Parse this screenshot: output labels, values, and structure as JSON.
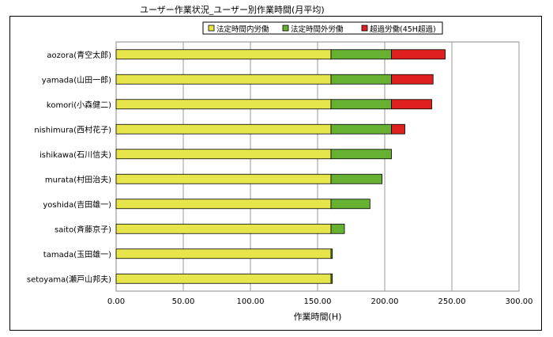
{
  "chart_data": {
    "type": "bar",
    "orientation": "horizontal",
    "stacked": true,
    "title": "ユーザー作業状況_ユーザー別作業時間(月平均)",
    "xlabel": "作業時間(H)",
    "ylabel": "",
    "xlim": [
      0,
      300
    ],
    "xticks": [
      "0.00",
      "50.00",
      "100.00",
      "150.00",
      "200.00",
      "250.00",
      "300.00"
    ],
    "grid": true,
    "legend_position": "top-right",
    "categories": [
      "aozora(青空太郎)",
      "yamada(山田一郎)",
      "komori(小森健二)",
      "nishimura(西村花子)",
      "ishikawa(石川信夫)",
      "murata(村田治夫)",
      "yoshida(吉田雄一)",
      "saito(斉藤京子)",
      "tamada(玉田雄一)",
      "setoyama(瀬戸山邦夫)"
    ],
    "series": [
      {
        "name": "法定時間内労働",
        "color": "#e6e64c",
        "values": [
          160,
          160,
          160,
          160,
          160,
          160,
          160,
          160,
          160,
          160
        ]
      },
      {
        "name": "法定時間外労働",
        "color": "#66b032",
        "values": [
          45,
          45,
          45,
          45,
          45,
          38,
          29,
          10,
          1,
          1
        ]
      },
      {
        "name": "超過労働(45H超過)",
        "color": "#e02020",
        "values": [
          40,
          31,
          30,
          10,
          0,
          0,
          0,
          0,
          0,
          0
        ]
      }
    ]
  }
}
